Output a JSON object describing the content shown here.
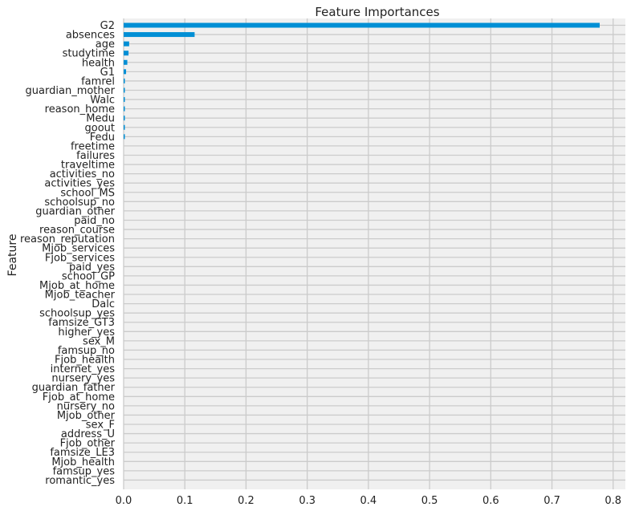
{
  "chart_data": {
    "type": "bar",
    "orientation": "horizontal",
    "title": "Feature Importances",
    "xlabel": "",
    "ylabel": "Feature",
    "xlim": [
      0,
      0.82
    ],
    "xticks": [
      "0.0",
      "0.1",
      "0.2",
      "0.3",
      "0.4",
      "0.5",
      "0.6",
      "0.7",
      "0.8"
    ],
    "grid": true,
    "bar_color": "#008fd5",
    "background_color": "#f0f0f0",
    "categories": [
      "G2",
      "absences",
      "age",
      "studytime",
      "health",
      "G1",
      "famrel",
      "guardian_mother",
      "Walc",
      "reason_home",
      "Medu",
      "goout",
      "Fedu",
      "freetime",
      "failures",
      "traveltime",
      "activities_no",
      "activities_yes",
      "school_MS",
      "schoolsup_no",
      "guardian_other",
      "paid_no",
      "reason_course",
      "reason_reputation",
      "Mjob_services",
      "Fjob_services",
      "paid_yes",
      "school_GP",
      "Mjob_at_home",
      "Mjob_teacher",
      "Dalc",
      "schoolsup_yes",
      "famsize_GT3",
      "higher_yes",
      "sex_M",
      "famsup_no",
      "Fjob_health",
      "internet_yes",
      "nursery_yes",
      "guardian_father",
      "Fjob_at_home",
      "nursery_no",
      "Mjob_other",
      "sex_F",
      "address_U",
      "Fjob_other",
      "famsize_LE3",
      "Mjob_health",
      "famsup_yes",
      "romantic_yes"
    ],
    "values": [
      0.778,
      0.116,
      0.009,
      0.008,
      0.006,
      0.004,
      0.002,
      0.002,
      0.002,
      0.002,
      0.002,
      0.002,
      0.002,
      0.0,
      0.0,
      0.0,
      0.0,
      0.0,
      0.0,
      0.0,
      0.0,
      0.0,
      0.0,
      0.0,
      0.0,
      0.0,
      0.0,
      0.0,
      0.0,
      0.0,
      0.0,
      0.0,
      0.0,
      0.0,
      0.0,
      0.0,
      0.0,
      0.0,
      0.0,
      0.0,
      0.0,
      0.0,
      0.0,
      0.0,
      0.0,
      0.0,
      0.0,
      0.0,
      0.0,
      0.0
    ]
  }
}
